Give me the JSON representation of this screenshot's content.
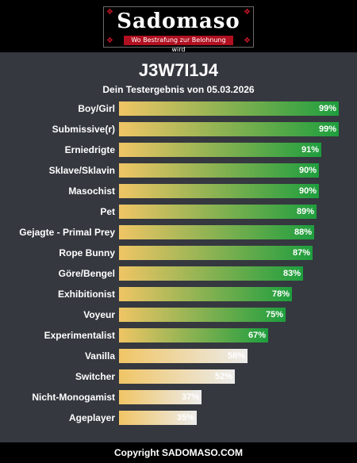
{
  "header": {
    "logo_text": "Sadomaso",
    "logo_tagline": "Wo Bestrafung zur Belohnung wird"
  },
  "chart_data": {
    "type": "bar",
    "orientation": "horizontal",
    "title": "J3W7I1J4",
    "subtitle": "Dein Testergebnis von 05.03.2026",
    "xlim": [
      0,
      100
    ],
    "unit": "%",
    "grid": false,
    "colors": {
      "gradient_start": "#f0c565",
      "high_end": "#1e9e3e",
      "low_end": "#ececec"
    },
    "categories": [
      "Boy/Girl",
      "Submissive(r)",
      "Erniedrigte",
      "Sklave/Sklavin",
      "Masochist",
      "Pet",
      "Gejagte - Primal Prey",
      "Rope Bunny",
      "Göre/Bengel",
      "Exhibitionist",
      "Voyeur",
      "Experimentalist",
      "Vanilla",
      "Switcher",
      "Nicht-Monogamist",
      "Ageplayer"
    ],
    "values": [
      99,
      99,
      91,
      90,
      90,
      89,
      88,
      87,
      83,
      78,
      75,
      67,
      58,
      52,
      37,
      35
    ],
    "labels": [
      "99%",
      "99%",
      "91%",
      "90%",
      "90%",
      "89%",
      "88%",
      "87%",
      "83%",
      "78%",
      "75%",
      "67%",
      "58%",
      "52%",
      "37%",
      "35%"
    ]
  },
  "footer": {
    "copyright": "Copyright SADOMASO.COM"
  }
}
